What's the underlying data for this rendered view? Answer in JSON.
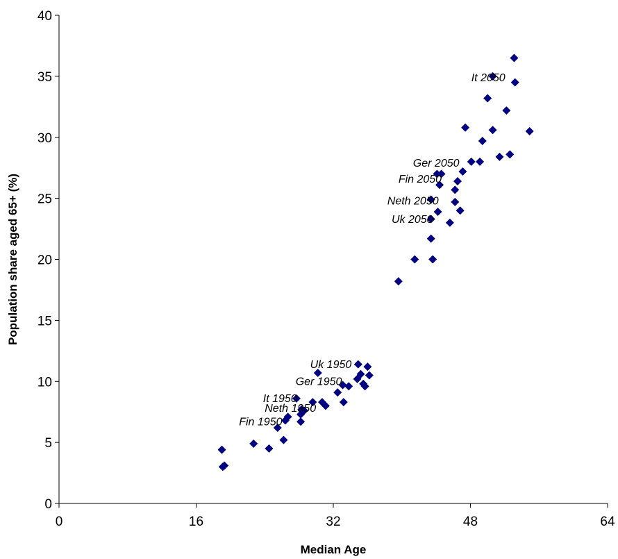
{
  "chart_data": {
    "type": "scatter",
    "title": "",
    "xlabel": "Median Age",
    "ylabel": "Population share aged 65+ (%)",
    "xlim": [
      0,
      64
    ],
    "ylim": [
      0,
      40
    ],
    "x_ticks": [
      0,
      16,
      32,
      48,
      64
    ],
    "y_ticks": [
      0,
      5,
      10,
      15,
      20,
      25,
      30,
      35,
      40
    ],
    "grid": false,
    "legend": "none",
    "marker": "diamond",
    "color": "#000080",
    "points": [
      [
        19.1,
        3.0
      ],
      [
        19.3,
        3.1
      ],
      [
        19.0,
        4.4
      ],
      [
        22.7,
        4.9
      ],
      [
        24.5,
        4.5
      ],
      [
        25.5,
        6.2
      ],
      [
        26.4,
        6.8
      ],
      [
        26.7,
        7.1
      ],
      [
        26.2,
        5.2
      ],
      [
        27.7,
        8.6
      ],
      [
        28.2,
        6.7
      ],
      [
        28.2,
        7.3
      ],
      [
        28.3,
        7.7
      ],
      [
        28.6,
        7.6
      ],
      [
        29.6,
        8.3
      ],
      [
        30.2,
        10.7
      ],
      [
        30.7,
        8.3
      ],
      [
        31.1,
        8.0
      ],
      [
        32.5,
        9.1
      ],
      [
        33.1,
        9.7
      ],
      [
        33.2,
        8.3
      ],
      [
        33.8,
        9.6
      ],
      [
        34.8,
        10.2
      ],
      [
        34.9,
        11.4
      ],
      [
        35.2,
        10.6
      ],
      [
        35.5,
        9.8
      ],
      [
        35.7,
        9.6
      ],
      [
        36.0,
        11.2
      ],
      [
        36.2,
        10.5
      ],
      [
        39.6,
        18.2
      ],
      [
        41.5,
        20.0
      ],
      [
        43.6,
        20.0
      ],
      [
        43.4,
        21.7
      ],
      [
        43.4,
        23.3
      ],
      [
        43.4,
        24.9
      ],
      [
        44.2,
        23.9
      ],
      [
        44.1,
        27.0
      ],
      [
        44.4,
        26.1
      ],
      [
        44.6,
        27.0
      ],
      [
        45.6,
        23.0
      ],
      [
        46.2,
        24.7
      ],
      [
        46.2,
        25.7
      ],
      [
        46.5,
        26.4
      ],
      [
        46.8,
        24.0
      ],
      [
        47.1,
        27.2
      ],
      [
        47.4,
        30.8
      ],
      [
        48.1,
        28.0
      ],
      [
        49.1,
        28.0
      ],
      [
        49.4,
        29.7
      ],
      [
        50.0,
        33.2
      ],
      [
        50.6,
        30.6
      ],
      [
        50.6,
        35.0
      ],
      [
        51.4,
        28.4
      ],
      [
        52.2,
        32.2
      ],
      [
        52.6,
        28.6
      ],
      [
        53.2,
        34.5
      ],
      [
        53.1,
        36.5
      ],
      [
        54.9,
        30.5
      ]
    ],
    "annotations": [
      {
        "text": "Fin 1950",
        "x": 21.0,
        "y": 6.4
      },
      {
        "text": "Neth 1950",
        "x": 24.0,
        "y": 7.5
      },
      {
        "text": "It 1950",
        "x": 23.8,
        "y": 8.3
      },
      {
        "text": "Ger 1950",
        "x": 27.6,
        "y": 9.7
      },
      {
        "text": "Uk 1950",
        "x": 29.3,
        "y": 11.1
      },
      {
        "text": "Ger 2050",
        "x": 41.3,
        "y": 27.6
      },
      {
        "text": "Fin 2050",
        "x": 39.6,
        "y": 26.3
      },
      {
        "text": "Neth 2050",
        "x": 38.3,
        "y": 24.5
      },
      {
        "text": "Uk 2050",
        "x": 38.8,
        "y": 23.0
      },
      {
        "text": "It 2050",
        "x": 48.1,
        "y": 34.6
      }
    ]
  }
}
